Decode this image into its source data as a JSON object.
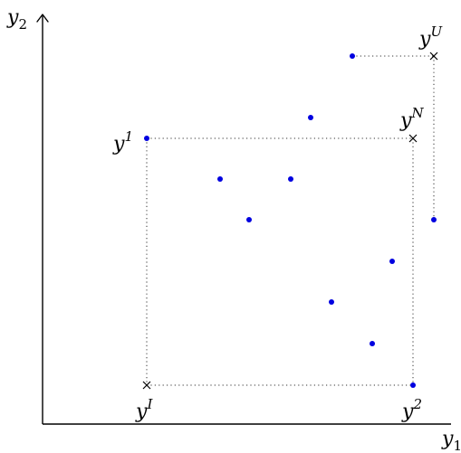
{
  "axes": {
    "x": {
      "base": "y",
      "sub": "1"
    },
    "y": {
      "base": "y",
      "sub": "2"
    }
  },
  "special_points": [
    {
      "id": "ideal",
      "base": "y",
      "sup": "I"
    },
    {
      "id": "nadir",
      "base": "y",
      "sup": "N"
    },
    {
      "id": "utopia",
      "base": "y",
      "sup": "U"
    },
    {
      "id": "y1",
      "base": "y",
      "sup": "1"
    },
    {
      "id": "y2",
      "base": "y",
      "sup": "2"
    }
  ],
  "colors": {
    "points": "#0000e0",
    "axes": "#000000",
    "guides": "#333333"
  }
}
